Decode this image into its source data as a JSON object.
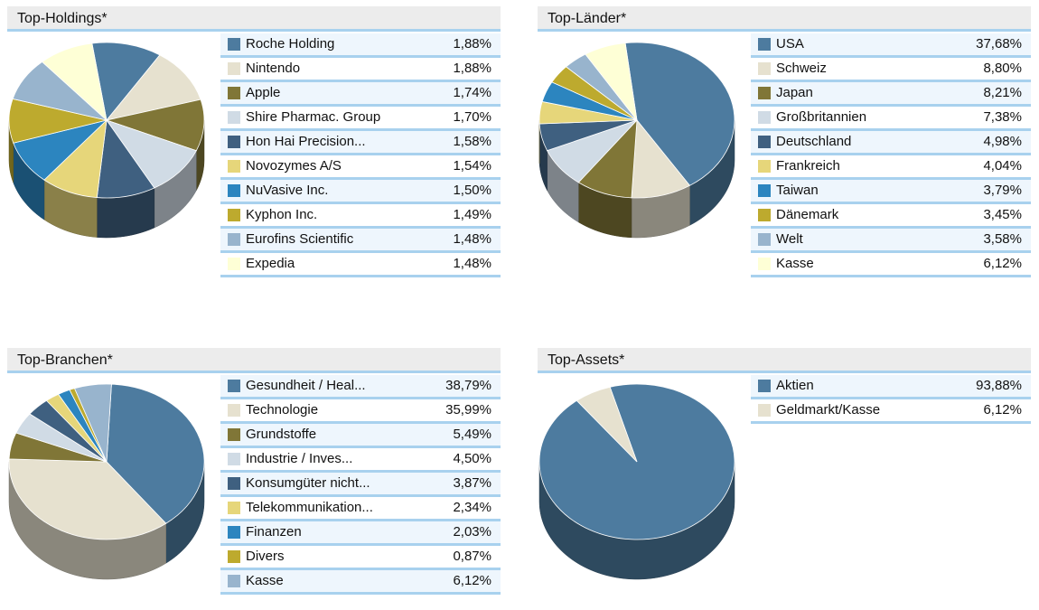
{
  "colors": [
    "#4d7b9f",
    "#e6e1cf",
    "#807637",
    "#d0dbe5",
    "#3f6080",
    "#e6d67a",
    "#2c85bf",
    "#bdaa2e",
    "#98b4cd",
    "#feffd6"
  ],
  "chart_data": [
    {
      "type": "pie",
      "title": "Top-Holdings*",
      "categories": [
        "Roche Holding",
        "Nintendo",
        "Apple",
        "Shire Pharmac. Group",
        "Hon Hai Precision...",
        "Novozymes A/S",
        "NuVasive Inc.",
        "Kyphon Inc.",
        "Eurofins Scientific",
        "Expedia"
      ],
      "labels": [
        "1,88%",
        "1,88%",
        "1,74%",
        "1,70%",
        "1,58%",
        "1,54%",
        "1,50%",
        "1,49%",
        "1,48%",
        "1,48%"
      ],
      "values": [
        1.88,
        1.88,
        1.74,
        1.7,
        1.58,
        1.54,
        1.5,
        1.49,
        1.48,
        1.48
      ]
    },
    {
      "type": "pie",
      "title": "Top-Länder*",
      "categories": [
        "USA",
        "Schweiz",
        "Japan",
        "Großbritannien",
        "Deutschland",
        "Frankreich",
        "Taiwan",
        "Dänemark",
        "Welt",
        "Kasse"
      ],
      "labels": [
        "37,68%",
        "8,80%",
        "8,21%",
        "7,38%",
        "4,98%",
        "4,04%",
        "3,79%",
        "3,45%",
        "3,58%",
        "6,12%"
      ],
      "values": [
        37.68,
        8.8,
        8.21,
        7.38,
        4.98,
        4.04,
        3.79,
        3.45,
        3.58,
        6.12
      ]
    },
    {
      "type": "pie",
      "title": "Top-Branchen*",
      "categories": [
        "Gesundheit / Heal...",
        "Technologie",
        "Grundstoffe",
        "Industrie / Inves...",
        "Konsumgüter nicht...",
        "Telekommunikation...",
        "Finanzen",
        "Divers",
        "Kasse"
      ],
      "labels": [
        "38,79%",
        "35,99%",
        "5,49%",
        "4,50%",
        "3,87%",
        "2,34%",
        "2,03%",
        "0,87%",
        "6,12%"
      ],
      "values": [
        38.79,
        35.99,
        5.49,
        4.5,
        3.87,
        2.34,
        2.03,
        0.87,
        6.12
      ]
    },
    {
      "type": "pie",
      "title": "Top-Assets*",
      "categories": [
        "Aktien",
        "Geldmarkt/Kasse"
      ],
      "labels": [
        "93,88%",
        "6,12%"
      ],
      "values": [
        93.88,
        6.12
      ]
    }
  ]
}
